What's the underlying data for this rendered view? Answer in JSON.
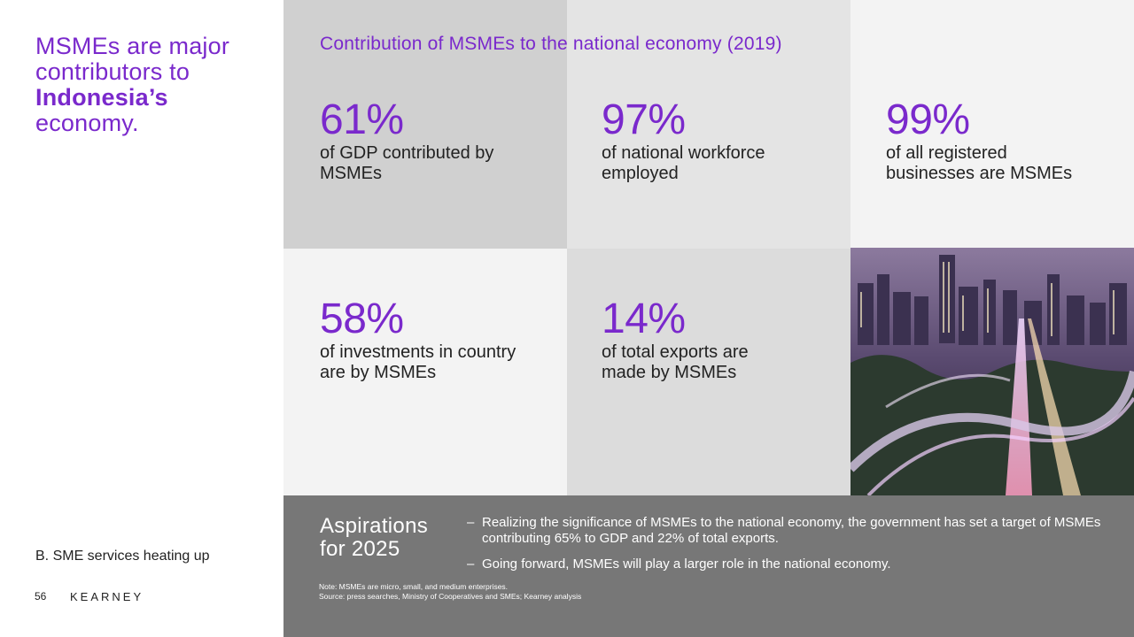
{
  "left": {
    "headline_part1": "MSMEs are major contributors to",
    "headline_bold": "Indonesia’s",
    "headline_part2": "economy.",
    "section_label": "B. SME services heating up",
    "page_number": "56",
    "logo": "KEARNEY"
  },
  "main": {
    "title": "Contribution of MSMEs to the national economy (2019)",
    "stats": [
      {
        "value": "61%",
        "label": "of GDP contributed by MSMEs"
      },
      {
        "value": "97%",
        "label": "of national workforce employed"
      },
      {
        "value": "99%",
        "label": "of all registered businesses are MSMEs"
      },
      {
        "value": "58%",
        "label": "of investments in country are by MSMEs"
      },
      {
        "value": "14%",
        "label": "of total exports are made by MSMEs"
      }
    ]
  },
  "aspirations": {
    "title": "Aspirations for 2025",
    "bullets": [
      "Realizing the significance of MSMEs to the national economy, the government has set a target of MSMEs contributing 65% to GDP and 22% of total exports.",
      "Going forward, MSMEs will play a larger role in the national economy."
    ],
    "dash": "–",
    "note": "Note: MSMEs are micro, small, and medium enterprises.",
    "source": "Source: press searches, Ministry of Cooperatives and SMEs; Kearney analysis"
  },
  "colors": {
    "accent": "#7a29cc",
    "panel_gray": "#777777"
  }
}
